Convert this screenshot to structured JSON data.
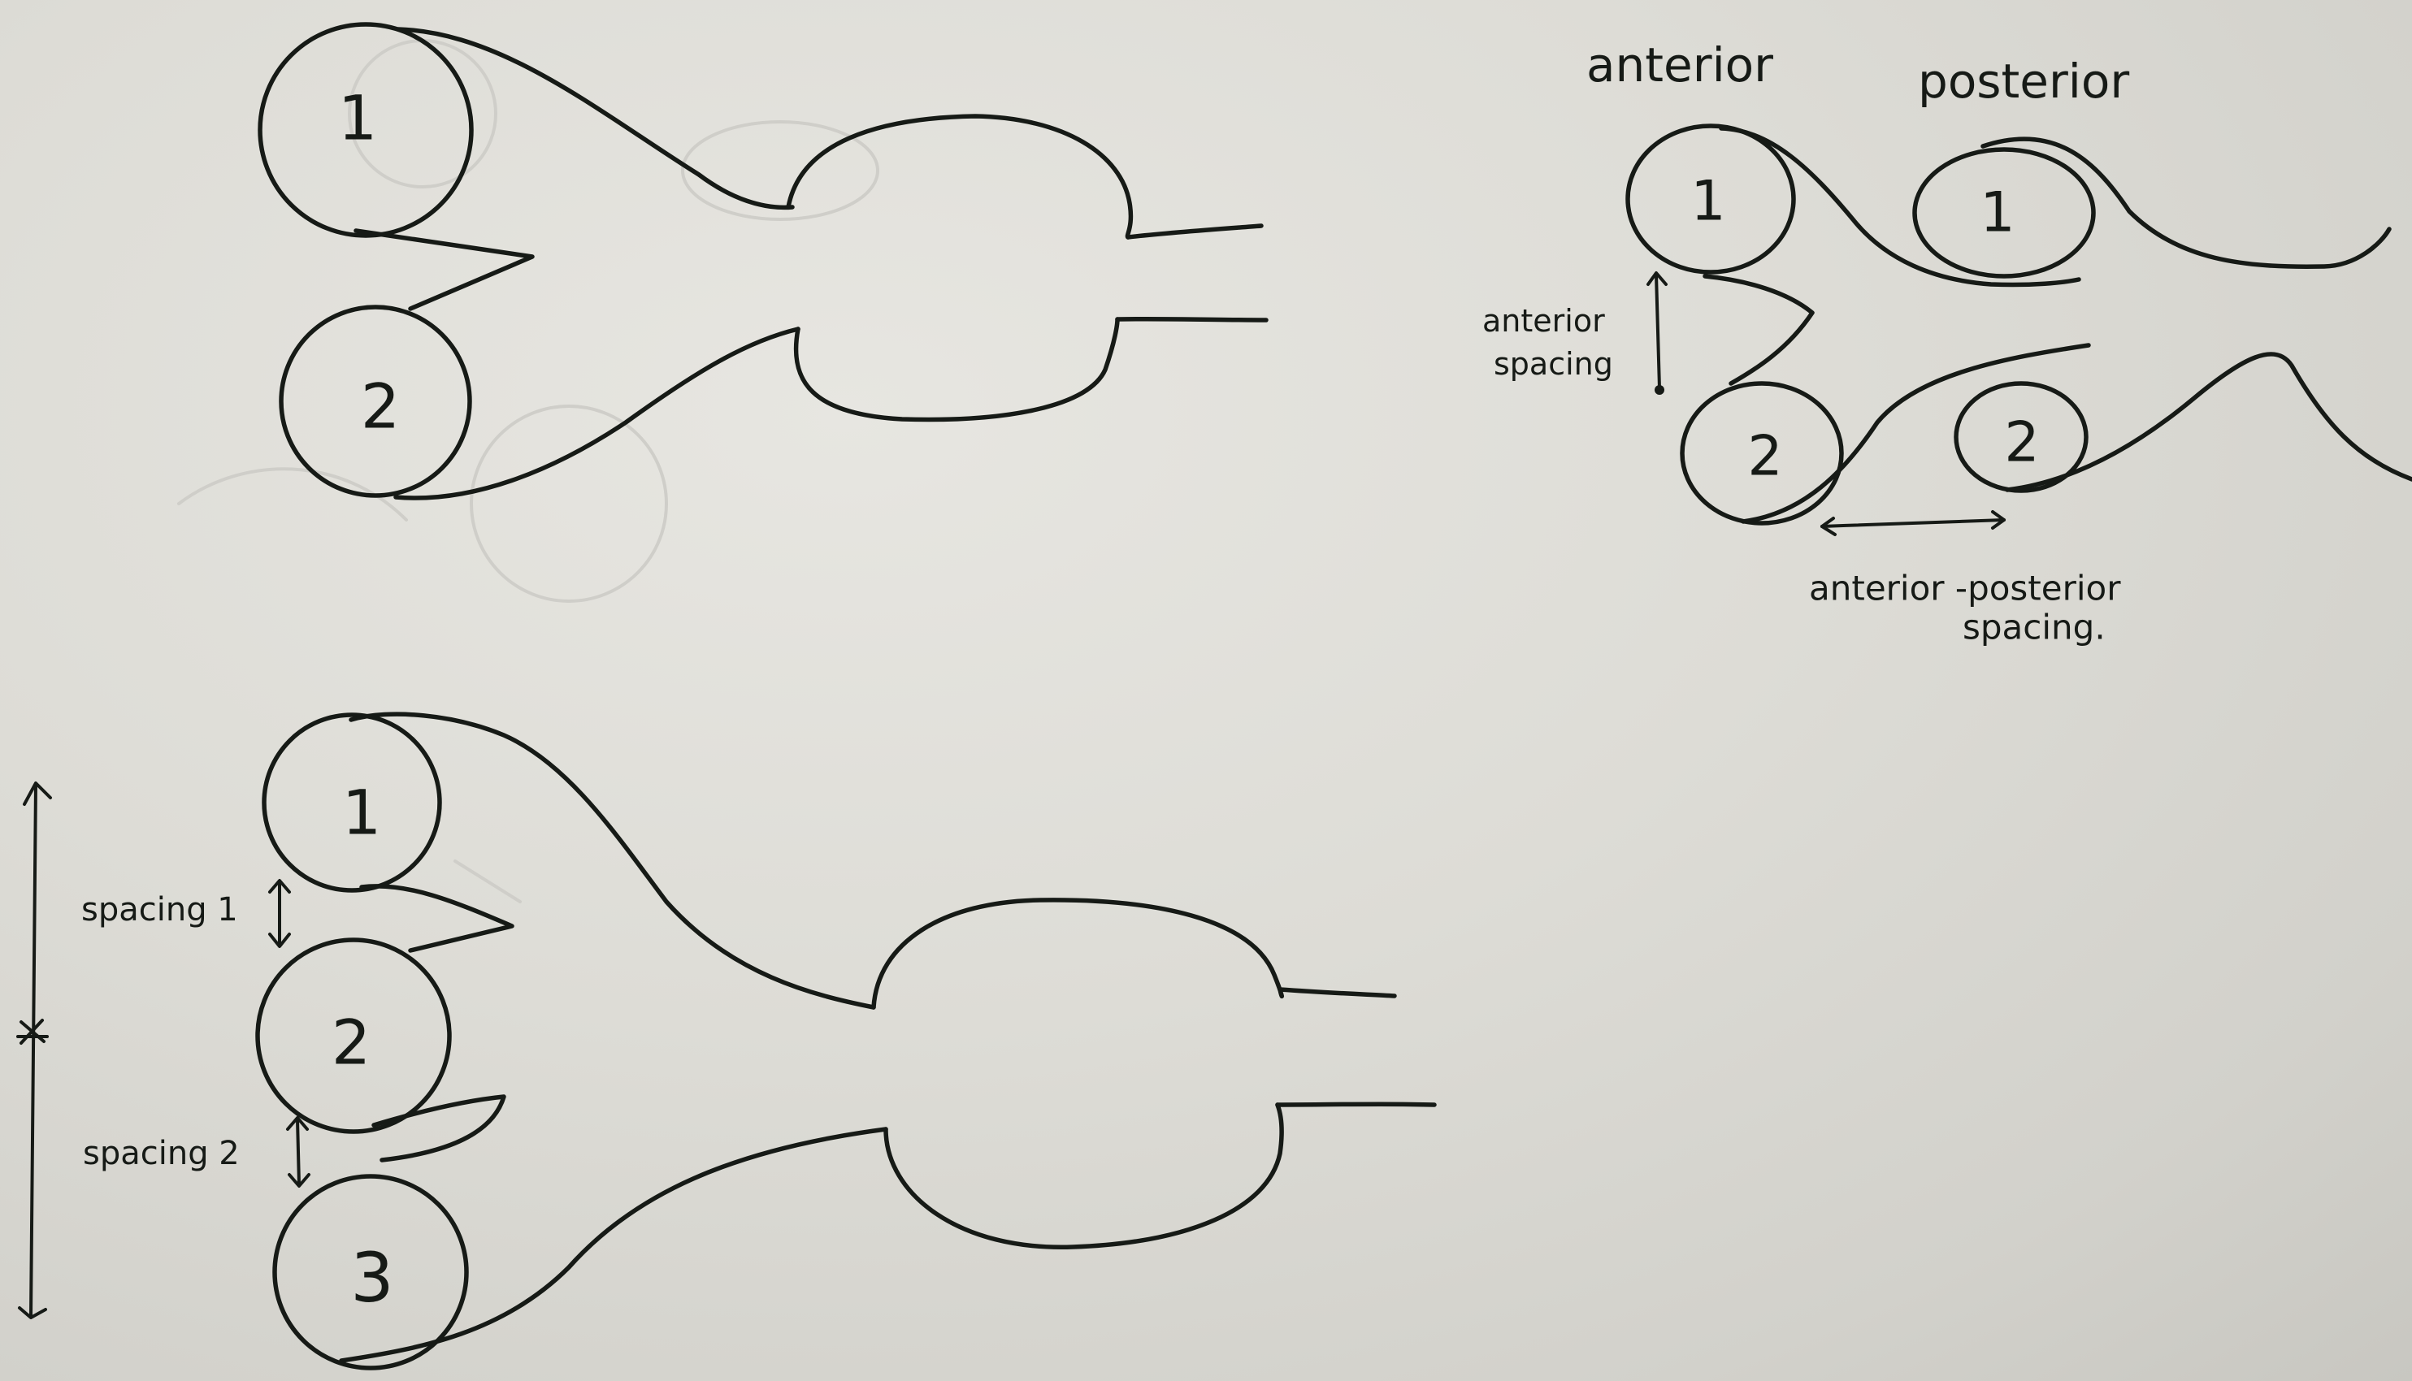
{
  "numbers": {
    "one": "1",
    "two": "2",
    "three": "3"
  },
  "labels": {
    "anterior": "anterior",
    "posterior": "posterior",
    "anterior_spacing_line1": "anterior",
    "anterior_spacing_line2": "spacing",
    "ap_spacing_line1": "anterior -posterior",
    "ap_spacing_line2": "spacing.",
    "spacing1": "spacing 1",
    "spacing2": "spacing 2"
  },
  "colors": {
    "ink": "#161a16",
    "paper": "#dddcd6"
  }
}
